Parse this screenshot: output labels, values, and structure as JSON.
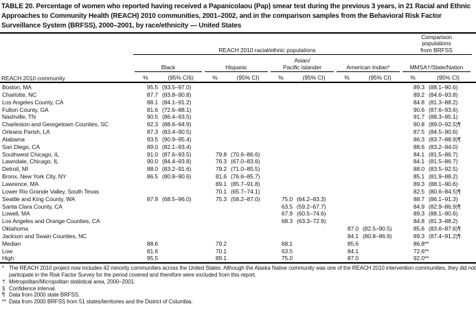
{
  "title": "TABLE 20. Percentage of women who reported having received a Papanicolaou (Pap) smear test during the previous 3 years, in 21 Racial and Ethnic Approaches to Community Health (REACH) 2010 communities, 2001–2002, and in the comparison samples from the Behavioral Risk Factor Surveillance System (BRFSS), 2000–2001, by race/ethnicity — United States",
  "header": {
    "row_label": "REACH 2010 community",
    "reach_span_label": "REACH 2010 racial/ethnic populations",
    "comparison_label": "Comparison\npopulations\nfrom BRFSS",
    "groups": [
      {
        "label": "Black",
        "pct": "%",
        "ci": "(95% CI§)"
      },
      {
        "label": "Hispanic",
        "pct": "%",
        "ci": "(95% CI)"
      },
      {
        "label": "Asian/\nPacific Islander",
        "pct": "%",
        "ci": "(95% CI)"
      },
      {
        "label": "American Indian*",
        "pct": "%",
        "ci": "(95% CI)"
      },
      {
        "label": "MMSA†/State/Nation",
        "pct": "%",
        "ci": "(95% CI)"
      }
    ]
  },
  "table": {
    "row_keys": [
      "community",
      "b_pct",
      "b_ci",
      "h_pct",
      "h_ci",
      "a_pct",
      "a_ci",
      "ai_pct",
      "ai_ci",
      "m_pct",
      "m_ci"
    ],
    "rows": [
      {
        "community": "Boston, MA",
        "b_pct": "95.5",
        "b_ci": "(93.5–97.0)",
        "h_pct": "",
        "h_ci": "",
        "a_pct": "",
        "a_ci": "",
        "ai_pct": "",
        "ai_ci": "",
        "m_pct": "89.3",
        "m_ci": "(88.1–90.6)"
      },
      {
        "community": "Charlotte, NC",
        "b_pct": "87.7",
        "b_ci": "(83.8–90.8)",
        "h_pct": "",
        "h_ci": "",
        "a_pct": "",
        "a_ci": "",
        "ai_pct": "",
        "ai_ci": "",
        "m_pct": "89.2",
        "m_ci": "(84.6–93.8)"
      },
      {
        "community": "Los Angeles County, CA",
        "b_pct": "88.1",
        "b_ci": "(84.1–91.2)",
        "h_pct": "",
        "h_ci": "",
        "a_pct": "",
        "a_ci": "",
        "ai_pct": "",
        "ai_ci": "",
        "m_pct": "84.8",
        "m_ci": "(81.3–88.2)"
      },
      {
        "community": "Fulton County, GA",
        "b_pct": "81.6",
        "b_ci": "(72.6–88.1)",
        "h_pct": "",
        "h_ci": "",
        "a_pct": "",
        "a_ci": "",
        "ai_pct": "",
        "ai_ci": "",
        "m_pct": "90.6",
        "m_ci": "(87.6–93.6)"
      },
      {
        "community": "Nashville, TN",
        "b_pct": "90.5",
        "b_ci": "(86.4–93.5)",
        "h_pct": "",
        "h_ci": "",
        "a_pct": "",
        "a_ci": "",
        "ai_pct": "",
        "ai_ci": "",
        "m_pct": "91.7",
        "m_ci": "(88.3–95.1)"
      },
      {
        "community": "Charleston and Georgetown Counties, SC",
        "b_pct": "92.3",
        "b_ci": "(88.6–94.9)",
        "h_pct": "",
        "h_ci": "",
        "a_pct": "",
        "a_ci": "",
        "ai_pct": "",
        "ai_ci": "",
        "m_pct": "90.8",
        "m_ci": "(89.0–92.5)¶"
      },
      {
        "community": "Orleans Parish, LA",
        "b_pct": "87.3",
        "b_ci": "(83.4–90.5)",
        "h_pct": "",
        "h_ci": "",
        "a_pct": "",
        "a_ci": "",
        "ai_pct": "",
        "ai_ci": "",
        "m_pct": "87.5",
        "m_ci": "(84.5–90.6)"
      },
      {
        "community": "Alabama",
        "b_pct": "93.5",
        "b_ci": "(90.9–95.4)",
        "h_pct": "",
        "h_ci": "",
        "a_pct": "",
        "a_ci": "",
        "ai_pct": "",
        "ai_ci": "",
        "m_pct": "86.3",
        "m_ci": "(83.7–88.9)¶"
      },
      {
        "community": "San Diego, CA",
        "b_pct": "89.0",
        "b_ci": "(82.1–93.4)",
        "h_pct": "",
        "h_ci": "",
        "a_pct": "",
        "a_ci": "",
        "ai_pct": "",
        "ai_ci": "",
        "m_pct": "88.6",
        "m_ci": "(83.2–94.0)"
      },
      {
        "community": "Southwest Chicago, IL",
        "b_pct": "91.0",
        "b_ci": "(87.6–93.5)",
        "h_pct": "79.8",
        "h_ci": "(70.6–86.6)",
        "a_pct": "",
        "a_ci": "",
        "ai_pct": "",
        "ai_ci": "",
        "m_pct": "84.1",
        "m_ci": "(81.5–86.7)"
      },
      {
        "community": "Lawndale, Chicago, IL",
        "b_pct": "90.0",
        "b_ci": "(84.4–93.8)",
        "h_pct": "76.3",
        "h_ci": "(67.0–83.6)",
        "a_pct": "",
        "a_ci": "",
        "ai_pct": "",
        "ai_ci": "",
        "m_pct": "84.1",
        "m_ci": "(81.5–86.7)"
      },
      {
        "community": "Detroit, MI",
        "b_pct": "88.0",
        "b_ci": "(83.2–91.6)",
        "h_pct": "79.2",
        "h_ci": "(71.0–85.5)",
        "a_pct": "",
        "a_ci": "",
        "ai_pct": "",
        "ai_ci": "",
        "m_pct": "88.0",
        "m_ci": "(83.5–92.5)"
      },
      {
        "community": "Bronx, New York City, NY",
        "b_pct": "86.5",
        "b_ci": "(80.8–90.6)",
        "h_pct": "81.6",
        "h_ci": "(76.6–85.7)",
        "a_pct": "",
        "a_ci": "",
        "ai_pct": "",
        "ai_ci": "",
        "m_pct": "85.1",
        "m_ci": "(81.9–88.2)"
      },
      {
        "community": "Lawrence, MA",
        "b_pct": "",
        "b_ci": "",
        "h_pct": "89.1",
        "h_ci": "(85.7–91.8)",
        "a_pct": "",
        "a_ci": "",
        "ai_pct": "",
        "ai_ci": "",
        "m_pct": "89.3",
        "m_ci": "(88.1–90.6)"
      },
      {
        "community": "Lower Rio Grande Valley, South Texas",
        "b_pct": "",
        "b_ci": "",
        "h_pct": "70.1",
        "h_ci": "(65.7–74.1)",
        "a_pct": "",
        "a_ci": "",
        "ai_pct": "",
        "ai_ci": "",
        "m_pct": "82.5",
        "m_ci": "(80.6–84.5)¶"
      },
      {
        "community": "Seattle and King County, WA",
        "b_pct": "87.9",
        "b_ci": "(68.5–96.0)",
        "h_pct": "75.3",
        "h_ci": "(58.2–87.0)",
        "a_pct": "75.0",
        "a_ci": "(64.2–83.3)",
        "ai_pct": "",
        "ai_ci": "",
        "m_pct": "88.7",
        "m_ci": "(86.1–91.3)"
      },
      {
        "community": "Santa Clara County, CA",
        "b_pct": "",
        "b_ci": "",
        "h_pct": "",
        "h_ci": "",
        "a_pct": "63.5",
        "a_ci": "(59.2–67.7)",
        "ai_pct": "",
        "ai_ci": "",
        "m_pct": "84.9",
        "m_ci": "(82.9–86.9)¶"
      },
      {
        "community": "Lowell, MA",
        "b_pct": "",
        "b_ci": "",
        "h_pct": "",
        "h_ci": "",
        "a_pct": "67.9",
        "a_ci": "(60.5–74.6)",
        "ai_pct": "",
        "ai_ci": "",
        "m_pct": "89.3",
        "m_ci": "(88.1–90.6)"
      },
      {
        "community": "Los Angeles and Orange Counties, CA",
        "b_pct": "",
        "b_ci": "",
        "h_pct": "",
        "h_ci": "",
        "a_pct": "68.3",
        "a_ci": "(63.3–72.9)",
        "ai_pct": "",
        "ai_ci": "",
        "m_pct": "84.8",
        "m_ci": "(81.3–88.2)"
      },
      {
        "community": "Oklahoma",
        "b_pct": "",
        "b_ci": "",
        "h_pct": "",
        "h_ci": "",
        "a_pct": "",
        "a_ci": "",
        "ai_pct": "87.0",
        "ai_ci": "(82.5–90.5)",
        "m_pct": "85.6",
        "m_ci": "(83.6–87.6)¶"
      },
      {
        "community": "Jackson and Swain Counties, NC",
        "b_pct": "",
        "b_ci": "",
        "h_pct": "",
        "h_ci": "",
        "a_pct": "",
        "a_ci": "",
        "ai_pct": "84.1",
        "ai_ci": "(80.8–86.9)",
        "m_pct": "89.3",
        "m_ci": "(87.4–91.2)¶"
      },
      {
        "community": "Median",
        "b_pct": "88.6",
        "b_ci": "",
        "h_pct": "79.2",
        "h_ci": "",
        "a_pct": "68.1",
        "a_ci": "",
        "ai_pct": "85.6",
        "ai_ci": "",
        "m_pct": "86.8**",
        "m_ci": ""
      },
      {
        "community": "Low",
        "b_pct": "81.6",
        "b_ci": "",
        "h_pct": "70.1",
        "h_ci": "",
        "a_pct": "63.5",
        "a_ci": "",
        "ai_pct": "84.1",
        "ai_ci": "",
        "m_pct": "72.6**",
        "m_ci": ""
      },
      {
        "community": "High",
        "b_pct": "95.5",
        "b_ci": "",
        "h_pct": "89.1",
        "h_ci": "",
        "a_pct": "75.0",
        "a_ci": "",
        "ai_pct": "87.0",
        "ai_ci": "",
        "m_pct": "92.0**",
        "m_ci": ""
      }
    ]
  },
  "footnotes": [
    {
      "marker": "*",
      "text": "The REACH 2010 project now includes 42 minority communities across the United States. Although the Alaska Native community was one of the REACH 2010 intervention communities, they did not participate in the Risk Factor Survey for the period covered and therefore were excluded from this report."
    },
    {
      "marker": "†",
      "text": "Metropolitan/Micropolitan statistical area, 2000–2001."
    },
    {
      "marker": "§",
      "text": "Confidence interval."
    },
    {
      "marker": "¶",
      "text": "Data from 2000 state BRFSS."
    },
    {
      "marker": "**",
      "text": "Data from 2000 BRFSS from 51 states/territories and the District of Columbia."
    }
  ]
}
